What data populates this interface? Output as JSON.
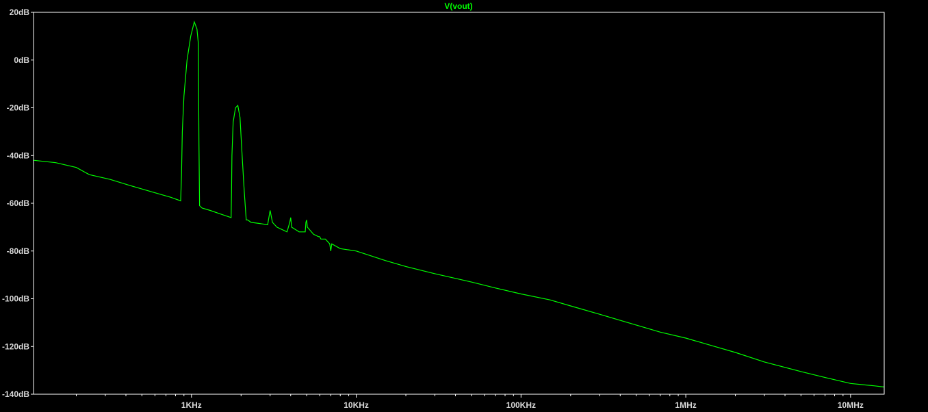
{
  "chart_data": {
    "type": "line",
    "title": "V(vout)",
    "xscale": "log",
    "xlim": [
      110,
      16000000
    ],
    "ylim": [
      -140,
      20
    ],
    "x_ticks": [
      {
        "value": 1000,
        "label": "1KHz"
      },
      {
        "value": 10000,
        "label": "10KHz"
      },
      {
        "value": 100000,
        "label": "100KHz"
      },
      {
        "value": 1000000,
        "label": "1MHz"
      },
      {
        "value": 10000000,
        "label": "10MHz"
      }
    ],
    "y_ticks": [
      {
        "value": 20,
        "label": "20dB"
      },
      {
        "value": 0,
        "label": "0dB"
      },
      {
        "value": -20,
        "label": "-20dB"
      },
      {
        "value": -40,
        "label": "-40dB"
      },
      {
        "value": -60,
        "label": "-60dB"
      },
      {
        "value": -80,
        "label": "-80dB"
      },
      {
        "value": -100,
        "label": "-100dB"
      },
      {
        "value": -120,
        "label": "-120dB"
      },
      {
        "value": -140,
        "label": "-140dB"
      }
    ],
    "colors": {
      "trace": "#00ff00",
      "background": "#000000",
      "frame": "#ffffff",
      "ticks": "#d8d8d8"
    },
    "series": [
      {
        "name": "V(vout)",
        "x": [
          110,
          150,
          200,
          240,
          320,
          420,
          560,
          750,
          860,
          870,
          880,
          900,
          940,
          990,
          1040,
          1080,
          1100,
          1110,
          1120,
          1160,
          1300,
          1500,
          1740,
          1750,
          1760,
          1790,
          1850,
          1910,
          1970,
          2030,
          2090,
          2150,
          2190,
          2300,
          2600,
          2900,
          3000,
          3100,
          3300,
          3800,
          3950,
          4000,
          4050,
          4500,
          4900,
          4950,
          5000,
          5050,
          5500,
          5900,
          6000,
          6100,
          6500,
          6900,
          7000,
          7100,
          8000,
          10000,
          15000,
          20000,
          30000,
          50000,
          70000,
          100000,
          150000,
          200000,
          300000,
          500000,
          700000,
          1000000,
          1500000,
          2000000,
          3000000,
          5000000,
          7000000,
          10000000,
          14000000,
          16000000
        ],
        "y": [
          -42,
          -43,
          -45,
          -48,
          -50,
          -52.5,
          -55,
          -57.5,
          -59,
          -48,
          -30,
          -15,
          0,
          10,
          16,
          13,
          7,
          -35,
          -61,
          -62,
          -63,
          -64.5,
          -66,
          -55,
          -40,
          -26,
          -20,
          -19,
          -24,
          -40,
          -55,
          -67,
          -67,
          -68,
          -68.5,
          -69,
          -63,
          -68,
          -70,
          -72,
          -68,
          -66,
          -70,
          -72,
          -72,
          -68,
          -67,
          -70,
          -73,
          -74,
          -74,
          -75,
          -75,
          -77,
          -80,
          -77,
          -79,
          -80,
          -84,
          -86.5,
          -89.5,
          -93,
          -95.5,
          -98,
          -100.5,
          -103,
          -106.5,
          -111,
          -114,
          -116.5,
          -120,
          -122.5,
          -126.5,
          -130.5,
          -133,
          -135.5,
          -136.5,
          -137
        ]
      }
    ]
  }
}
